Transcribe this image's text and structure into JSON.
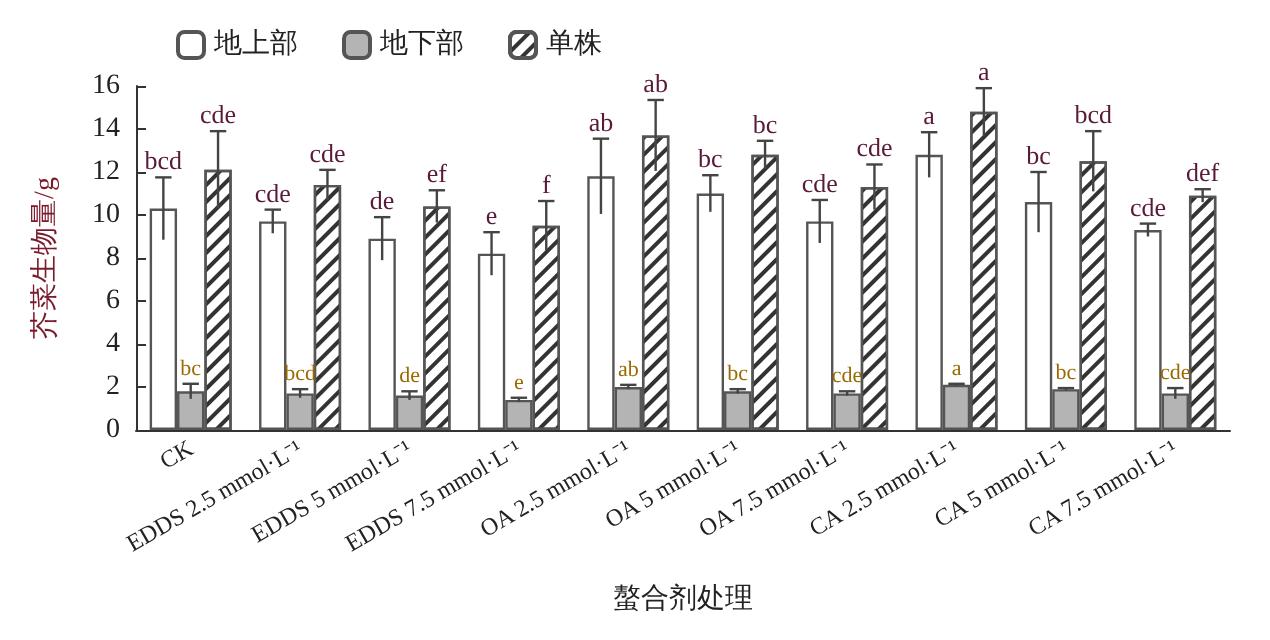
{
  "chart_data": {
    "type": "bar",
    "xlabel": "螯合剂处理",
    "ylabel": "芥菜生物量/g",
    "categories": [
      "CK",
      "EDDS 2.5 mmol·L⁻¹",
      "EDDS 5 mmol·L⁻¹",
      "EDDS 7.5 mmol·L⁻¹",
      "OA 2.5 mmol·L⁻¹",
      "OA 5 mmol·L⁻¹",
      "OA 7.5 mmol·L⁻¹",
      "CA 2.5 mmol·L⁻¹",
      "CA 5 mmol·L⁻¹",
      "CA 7.5 mmol·L⁻¹"
    ],
    "series": [
      {
        "name": "地上部",
        "color": "#ffffff",
        "values": [
          10.3,
          9.7,
          8.9,
          8.2,
          11.8,
          11.0,
          9.7,
          12.8,
          10.6,
          9.3
        ],
        "errors": [
          1.45,
          0.55,
          1.0,
          1.0,
          1.75,
          0.85,
          1.0,
          1.05,
          1.4,
          0.3
        ],
        "value_labels": [
          "bcd",
          "cde",
          "de",
          "e",
          "ab",
          "bc",
          "cde",
          "a",
          "bc",
          "cde"
        ]
      },
      {
        "name": "地下部",
        "color": "#b4b4b4",
        "values": [
          1.8,
          1.7,
          1.6,
          1.4,
          2.0,
          1.8,
          1.7,
          2.1,
          1.9,
          1.7
        ],
        "errors": [
          0.35,
          0.2,
          0.2,
          0.1,
          0.1,
          0.1,
          0.1,
          0.05,
          0.05,
          0.25
        ],
        "value_labels": [
          "bc",
          "bcd",
          "de",
          "e",
          "ab",
          "bc",
          "cde",
          "a",
          "bc",
          "cde"
        ]
      },
      {
        "name": "单株",
        "color": "#ffffff",
        "values": [
          12.1,
          11.4,
          10.4,
          9.5,
          13.7,
          12.8,
          11.3,
          14.8,
          12.5,
          10.9
        ],
        "errors": [
          1.8,
          0.7,
          0.75,
          1.15,
          1.65,
          0.65,
          1.05,
          1.1,
          1.4,
          0.3
        ],
        "value_labels": [
          "cde",
          "cde",
          "ef",
          "f",
          "ab",
          "bc",
          "cde",
          "a",
          "bcd",
          "def"
        ]
      }
    ],
    "ylim": [
      0,
      16
    ],
    "yticks": [
      0,
      2,
      4,
      6,
      8,
      10,
      12,
      14,
      16
    ],
    "legend": "top left",
    "grid": false
  }
}
